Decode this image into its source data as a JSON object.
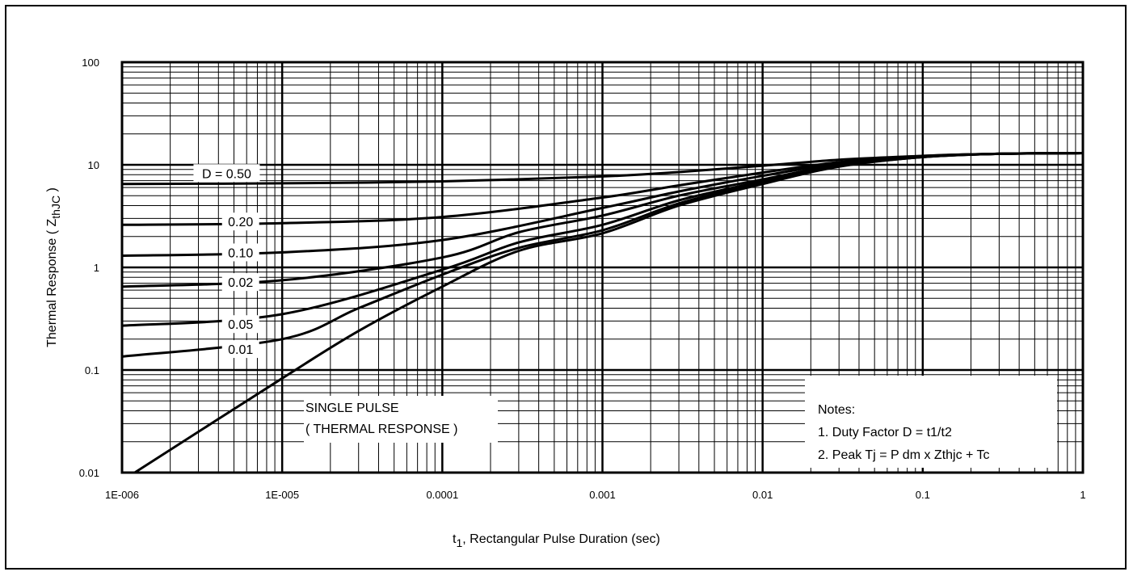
{
  "chart_data": {
    "type": "line",
    "xlabel_main": "t",
    "xlabel_sub": "1",
    "xlabel_rest": ", Rectangular Pulse Duration (sec)",
    "ylabel_main": "Thermal Response ( Z",
    "ylabel_sub": "thJC",
    "ylabel_end": " )",
    "x_scale": "log",
    "y_scale": "log",
    "xlim": [
      1e-06,
      1
    ],
    "ylim": [
      0.01,
      100
    ],
    "x_ticks": [
      {
        "value": 1e-06,
        "label": "1E-006"
      },
      {
        "value": 1e-05,
        "label": "1E-005"
      },
      {
        "value": 0.0001,
        "label": "0.0001"
      },
      {
        "value": 0.001,
        "label": "0.001"
      },
      {
        "value": 0.01,
        "label": "0.01"
      },
      {
        "value": 0.1,
        "label": "0.1"
      },
      {
        "value": 1,
        "label": "1"
      }
    ],
    "y_ticks": [
      {
        "value": 0.01,
        "label": "0.01"
      },
      {
        "value": 0.1,
        "label": "0.1"
      },
      {
        "value": 1,
        "label": "1"
      },
      {
        "value": 10,
        "label": "10"
      },
      {
        "value": 100,
        "label": "100"
      }
    ],
    "grid": true,
    "series": [
      {
        "name": "D = 0.50",
        "x": [
          1e-06,
          1e-05,
          0.0001,
          0.001,
          0.003,
          0.01,
          0.03,
          0.1,
          0.3,
          1
        ],
        "y": [
          6.5,
          6.6,
          6.9,
          7.7,
          8.5,
          9.8,
          11.2,
          12.2,
          12.8,
          13
        ]
      },
      {
        "name": "0.20",
        "x": [
          1e-06,
          1e-05,
          0.0001,
          0.001,
          0.003,
          0.01,
          0.03,
          0.1,
          0.3,
          1
        ],
        "y": [
          2.6,
          2.7,
          3.1,
          4.8,
          6.3,
          8.4,
          10.6,
          12.2,
          12.8,
          13
        ]
      },
      {
        "name": "0.10",
        "x": [
          1e-06,
          1e-05,
          0.0001,
          0.001,
          0.003,
          0.01,
          0.03,
          0.1,
          0.3,
          1
        ],
        "y": [
          1.3,
          1.4,
          1.85,
          3.8,
          5.5,
          7.8,
          10.3,
          12.1,
          12.8,
          13
        ]
      },
      {
        "name": "0.02",
        "x": [
          1e-06,
          1e-05,
          0.0001,
          0.0003,
          0.001,
          0.003,
          0.01,
          0.03,
          0.1,
          0.3,
          1
        ],
        "y": [
          0.65,
          0.75,
          1.25,
          2.2,
          3.2,
          5.0,
          7.2,
          10.0,
          12.0,
          12.8,
          13
        ]
      },
      {
        "name": "0.05",
        "x": [
          1e-06,
          1e-05,
          0.0001,
          0.0003,
          0.001,
          0.003,
          0.01,
          0.03,
          0.1,
          0.3,
          1
        ],
        "y": [
          0.27,
          0.35,
          0.95,
          1.75,
          2.6,
          4.5,
          6.9,
          9.8,
          11.9,
          12.8,
          13
        ]
      },
      {
        "name": "0.01",
        "x": [
          1e-06,
          1e-05,
          3e-05,
          0.0001,
          0.0003,
          0.001,
          0.003,
          0.01,
          0.03,
          0.1,
          0.3,
          1
        ],
        "y": [
          0.135,
          0.2,
          0.4,
          0.85,
          1.55,
          2.3,
          4.2,
          6.7,
          9.7,
          11.9,
          12.8,
          13
        ]
      },
      {
        "name": "SINGLE PULSE",
        "x": [
          1.2e-06,
          1e-05,
          3e-05,
          0.0001,
          0.0003,
          0.001,
          0.003,
          0.01,
          0.03,
          0.1,
          0.3,
          1
        ],
        "y": [
          0.01,
          0.083,
          0.24,
          0.65,
          1.45,
          2.15,
          4.0,
          6.5,
          9.6,
          11.9,
          12.8,
          13
        ]
      }
    ],
    "curve_labels": [
      {
        "text": "D = 0.50",
        "x": 4.5e-06,
        "y": 8.3
      },
      {
        "text": "0.20",
        "x": 5.5e-06,
        "y": 2.8
      },
      {
        "text": "0.10",
        "x": 5.5e-06,
        "y": 1.4
      },
      {
        "text": "0.02",
        "x": 5.5e-06,
        "y": 0.72
      },
      {
        "text": "0.05",
        "x": 5.5e-06,
        "y": 0.28
      },
      {
        "text": "0.01",
        "x": 5.5e-06,
        "y": 0.16
      }
    ],
    "single_pulse_label": [
      "SINGLE PULSE",
      "( THERMAL RESPONSE )"
    ],
    "notes": [
      "Notes:",
      "1. Duty Factor D = t1/t2",
      "2. Peak Tj = P dm x Zthjc + Tc"
    ]
  }
}
